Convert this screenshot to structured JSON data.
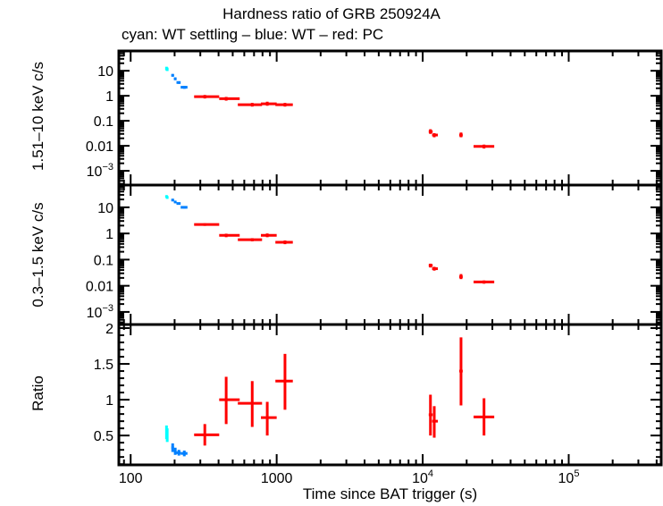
{
  "chart_data": {
    "type": "scatter",
    "title": "Hardness ratio of GRB 250924A",
    "subtitle": "cyan: WT settling – blue: WT – red: PC",
    "xlabel": "Time since BAT trigger (s)",
    "xscale": "log",
    "xlim": [
      83,
      430000
    ],
    "xticks": [
      "100",
      "1000",
      "10^4",
      "10^5"
    ],
    "colors": {
      "wt_settling": "#00ffff",
      "wt": "#0080ff",
      "pc": "#ff0000"
    },
    "point_format": [
      "t",
      "t_lo",
      "t_hi",
      "y",
      "y_lo",
      "y_hi"
    ],
    "panels": [
      {
        "ylabel": "1.51–10 keV c/s",
        "yscale": "log",
        "ylim": [
          0.00027,
          62
        ],
        "yticks": [
          "10",
          "1",
          "0.1",
          "0.01",
          "10^-3"
        ],
        "series": {
          "wt_settling": [
            [
              176,
              174,
              179,
              12.5,
              10.5,
              14.5
            ],
            [
              178,
              176,
              180,
              11.5,
              9.8,
              13.4
            ]
          ],
          "wt": [
            [
              194,
              190,
              198,
              6.6,
              5.8,
              7.4
            ],
            [
              202,
              198,
              206,
              4.8,
              4.2,
              5.4
            ],
            [
              214,
              206,
              220,
              3.4,
              3.0,
              3.8
            ],
            [
              233,
              220,
              245,
              2.2,
              1.9,
              2.5
            ]
          ],
          "pc": [
            [
              322,
              272,
              404,
              0.92,
              0.78,
              1.08
            ],
            [
              451,
              404,
              558,
              0.77,
              0.64,
              0.9
            ],
            [
              680,
              542,
              794,
              0.44,
              0.37,
              0.52
            ],
            [
              862,
              780,
              1000,
              0.48,
              0.4,
              0.58
            ],
            [
              1140,
              980,
              1290,
              0.44,
              0.37,
              0.52
            ],
            [
              11300,
              11000,
              11700,
              0.037,
              0.03,
              0.046
            ],
            [
              12000,
              11600,
              12700,
              0.027,
              0.022,
              0.032
            ],
            [
              18300,
              17800,
              18800,
              0.027,
              0.022,
              0.034
            ],
            [
              26300,
              22300,
              30900,
              0.0095,
              0.0078,
              0.0112
            ]
          ]
        }
      },
      {
        "ylabel": "0.3–1.5 keV c/s",
        "yscale": "log",
        "ylim": [
          0.00033,
          71
        ],
        "yticks": [
          "10",
          "1",
          "0.1",
          "0.01",
          "10^-3"
        ],
        "series": {
          "wt_settling": [
            [
              176,
              174,
              179,
              26,
              23,
              29
            ],
            [
              178,
              176,
              180,
              24,
              21,
              27
            ]
          ],
          "wt": [
            [
              194,
              190,
              198,
              19,
              17,
              21
            ],
            [
              202,
              198,
              206,
              16,
              14.5,
              17.5
            ],
            [
              214,
              206,
              220,
              14,
              12.7,
              15.3
            ],
            [
              233,
              220,
              245,
              10,
              9,
              11
            ]
          ],
          "pc": [
            [
              322,
              272,
              404,
              2.2,
              1.95,
              2.45
            ],
            [
              451,
              404,
              558,
              0.85,
              0.72,
              0.98
            ],
            [
              680,
              542,
              794,
              0.58,
              0.5,
              0.66
            ],
            [
              862,
              780,
              1000,
              0.85,
              0.72,
              1.0
            ],
            [
              1140,
              980,
              1290,
              0.46,
              0.39,
              0.54
            ],
            [
              11300,
              11000,
              11700,
              0.06,
              0.05,
              0.07
            ],
            [
              12000,
              11600,
              12700,
              0.045,
              0.038,
              0.053
            ],
            [
              18300,
              17800,
              18800,
              0.022,
              0.018,
              0.028
            ],
            [
              26300,
              22300,
              30900,
              0.014,
              0.012,
              0.016
            ]
          ]
        }
      },
      {
        "ylabel": "Ratio",
        "yscale": "linear",
        "ylim": [
          0.09,
          2.05
        ],
        "yticks": [
          "2",
          "1.5",
          "1",
          "0.5"
        ],
        "series": {
          "wt_settling": [
            [
              176,
              174,
              179,
              0.55,
              0.45,
              0.64
            ],
            [
              178,
              176,
              180,
              0.5,
              0.41,
              0.6
            ]
          ],
          "wt": [
            [
              194,
              190,
              198,
              0.33,
              0.27,
              0.39
            ],
            [
              202,
              198,
              206,
              0.28,
              0.23,
              0.33
            ],
            [
              214,
              206,
              220,
              0.26,
              0.22,
              0.3
            ],
            [
              233,
              220,
              245,
              0.25,
              0.21,
              0.29
            ]
          ],
          "pc": [
            [
              322,
              272,
              404,
              0.51,
              0.36,
              0.66
            ],
            [
              451,
              404,
              558,
              1.0,
              0.66,
              1.32
            ],
            [
              680,
              542,
              794,
              0.95,
              0.62,
              1.26
            ],
            [
              862,
              780,
              1000,
              0.75,
              0.5,
              0.97
            ],
            [
              1140,
              980,
              1290,
              1.26,
              0.86,
              1.64
            ],
            [
              11300,
              11000,
              11700,
              0.79,
              0.5,
              1.07
            ],
            [
              12000,
              11600,
              12700,
              0.7,
              0.47,
              0.91
            ],
            [
              18300,
              17800,
              18800,
              1.4,
              0.92,
              1.87
            ],
            [
              26300,
              22300,
              30900,
              0.76,
              0.5,
              1.02
            ]
          ]
        }
      }
    ]
  }
}
